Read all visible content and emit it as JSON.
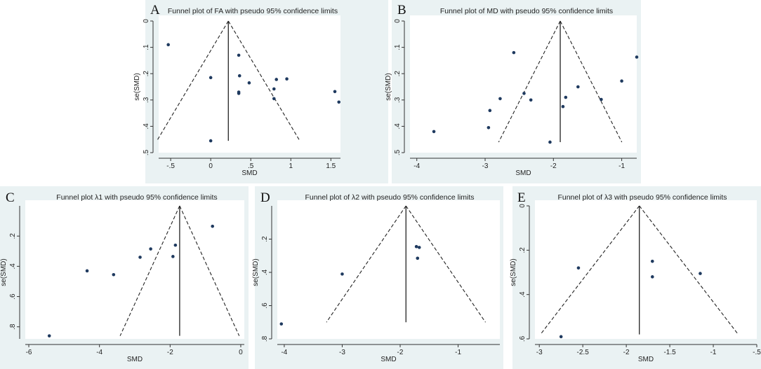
{
  "chart_data": [
    {
      "type": "scatter",
      "panel": "A",
      "title": "Funnel plot of FA with pseudo 95% confidence limits",
      "xlabel": "SMD",
      "ylabel": "se(SMD)",
      "xlim": [
        -0.65,
        1.62
      ],
      "ylim": [
        0,
        0.5
      ],
      "y_reversed": true,
      "xticks": [
        -0.5,
        0,
        0.5,
        1,
        1.5
      ],
      "xticklabels": [
        "-.5",
        "0",
        ".5",
        "1",
        "1.5"
      ],
      "yticks": [
        0,
        0.1,
        0.2,
        0.3,
        0.4,
        0.5
      ],
      "yticklabels": [
        "0",
        ".1",
        ".2",
        ".3",
        ".4",
        ".5"
      ],
      "pooled_smd": 0.22,
      "funnel_bottom_se": 0.455,
      "points": [
        [
          -0.53,
          0.09
        ],
        [
          0.0,
          0.215
        ],
        [
          0.0,
          0.455
        ],
        [
          0.35,
          0.13
        ],
        [
          0.36,
          0.208
        ],
        [
          0.35,
          0.27
        ],
        [
          0.35,
          0.275
        ],
        [
          0.48,
          0.235
        ],
        [
          0.82,
          0.222
        ],
        [
          0.79,
          0.258
        ],
        [
          0.79,
          0.295
        ],
        [
          0.95,
          0.22
        ],
        [
          1.55,
          0.268
        ],
        [
          1.6,
          0.308
        ]
      ]
    },
    {
      "type": "scatter",
      "panel": "B",
      "title": "Funnel plot of MD with pseudo 95% confidence limits",
      "xlabel": "SMD",
      "ylabel": "se(SMD)",
      "xlim": [
        -4.1,
        -0.78
      ],
      "ylim": [
        0,
        0.5
      ],
      "y_reversed": true,
      "xticks": [
        -4,
        -3,
        -2,
        -1
      ],
      "xticklabels": [
        "-4",
        "-3",
        "-2",
        "-1"
      ],
      "yticks": [
        0,
        0.1,
        0.2,
        0.3,
        0.4,
        0.5
      ],
      "yticklabels": [
        "0",
        ".1",
        ".2",
        ".3",
        ".4",
        ".5"
      ],
      "pooled_smd": -1.9,
      "funnel_bottom_se": 0.46,
      "points": [
        [
          -3.75,
          0.42
        ],
        [
          -2.93,
          0.34
        ],
        [
          -2.95,
          0.405
        ],
        [
          -2.78,
          0.295
        ],
        [
          -2.58,
          0.12
        ],
        [
          -2.43,
          0.275
        ],
        [
          -2.33,
          0.3
        ],
        [
          -2.05,
          0.46
        ],
        [
          -1.86,
          0.325
        ],
        [
          -1.82,
          0.29
        ],
        [
          -1.64,
          0.25
        ],
        [
          -1.3,
          0.298
        ],
        [
          -1.0,
          0.228
        ],
        [
          -0.78,
          0.137
        ]
      ]
    },
    {
      "type": "scatter",
      "panel": "C",
      "title": "Funnel plot λ1 with pseudo 95% confidence limits",
      "xlabel": "SMD",
      "ylabel": "se(SMD)",
      "xlim": [
        -6.1,
        0.1
      ],
      "ylim": [
        0,
        0.88
      ],
      "y_reversed": true,
      "xticks": [
        -6,
        -4,
        -2,
        0
      ],
      "xticklabels": [
        "-6",
        "-4",
        "-2",
        "0"
      ],
      "yticks": [
        0.2,
        0.4,
        0.6,
        0.8
      ],
      "yticklabels": [
        ".2",
        ".4",
        ".6",
        ".8"
      ],
      "pooled_smd": -1.73,
      "funnel_bottom_se": 0.86,
      "points": [
        [
          -5.42,
          0.86
        ],
        [
          -4.35,
          0.43
        ],
        [
          -3.6,
          0.455
        ],
        [
          -2.85,
          0.34
        ],
        [
          -2.55,
          0.285
        ],
        [
          -1.92,
          0.335
        ],
        [
          -1.85,
          0.26
        ],
        [
          -0.8,
          0.135
        ]
      ]
    },
    {
      "type": "scatter",
      "panel": "D",
      "title": "Funnel plot of  λ2 with pseudo 95% confidence limits",
      "xlabel": "SMD",
      "ylabel": "se(SMD)",
      "xlim": [
        -4.12,
        -0.28
      ],
      "ylim": [
        0,
        0.8
      ],
      "y_reversed": true,
      "xticks": [
        -4,
        -3,
        -2,
        -1
      ],
      "xticklabels": [
        "-4",
        "-3",
        "-2",
        "-1"
      ],
      "yticks": [
        0.2,
        0.4,
        0.6,
        0.8
      ],
      "yticklabels": [
        ".2",
        ".4",
        ".6",
        ".8"
      ],
      "pooled_smd": -1.9,
      "funnel_bottom_se": 0.7,
      "points": [
        [
          -4.05,
          0.71
        ],
        [
          -3.0,
          0.41
        ],
        [
          -1.72,
          0.245
        ],
        [
          -1.67,
          0.25
        ],
        [
          -1.7,
          0.315
        ]
      ]
    },
    {
      "type": "scatter",
      "panel": "E",
      "title": "Funnel plot of λ3 with pseudo 95% confidence limits",
      "xlabel": "SMD",
      "ylabel": "se(SMD)",
      "xlim": [
        -3.05,
        -0.5
      ],
      "ylim": [
        0,
        0.6
      ],
      "y_reversed": true,
      "xticks": [
        -3,
        -2.5,
        -2,
        -1.5,
        -1,
        -0.5
      ],
      "xticklabels": [
        "-3",
        "-2.5",
        "-2",
        "-1.5",
        "-1",
        "-.5"
      ],
      "yticks": [
        0,
        0.2,
        0.4,
        0.6
      ],
      "yticklabels": [
        "0",
        ".2",
        ".4",
        ".6"
      ],
      "pooled_smd": -1.85,
      "funnel_bottom_se": 0.58,
      "points": [
        [
          -2.75,
          0.59
        ],
        [
          -2.55,
          0.28
        ],
        [
          -1.7,
          0.25
        ],
        [
          -1.7,
          0.32
        ],
        [
          -1.15,
          0.305
        ]
      ]
    }
  ]
}
